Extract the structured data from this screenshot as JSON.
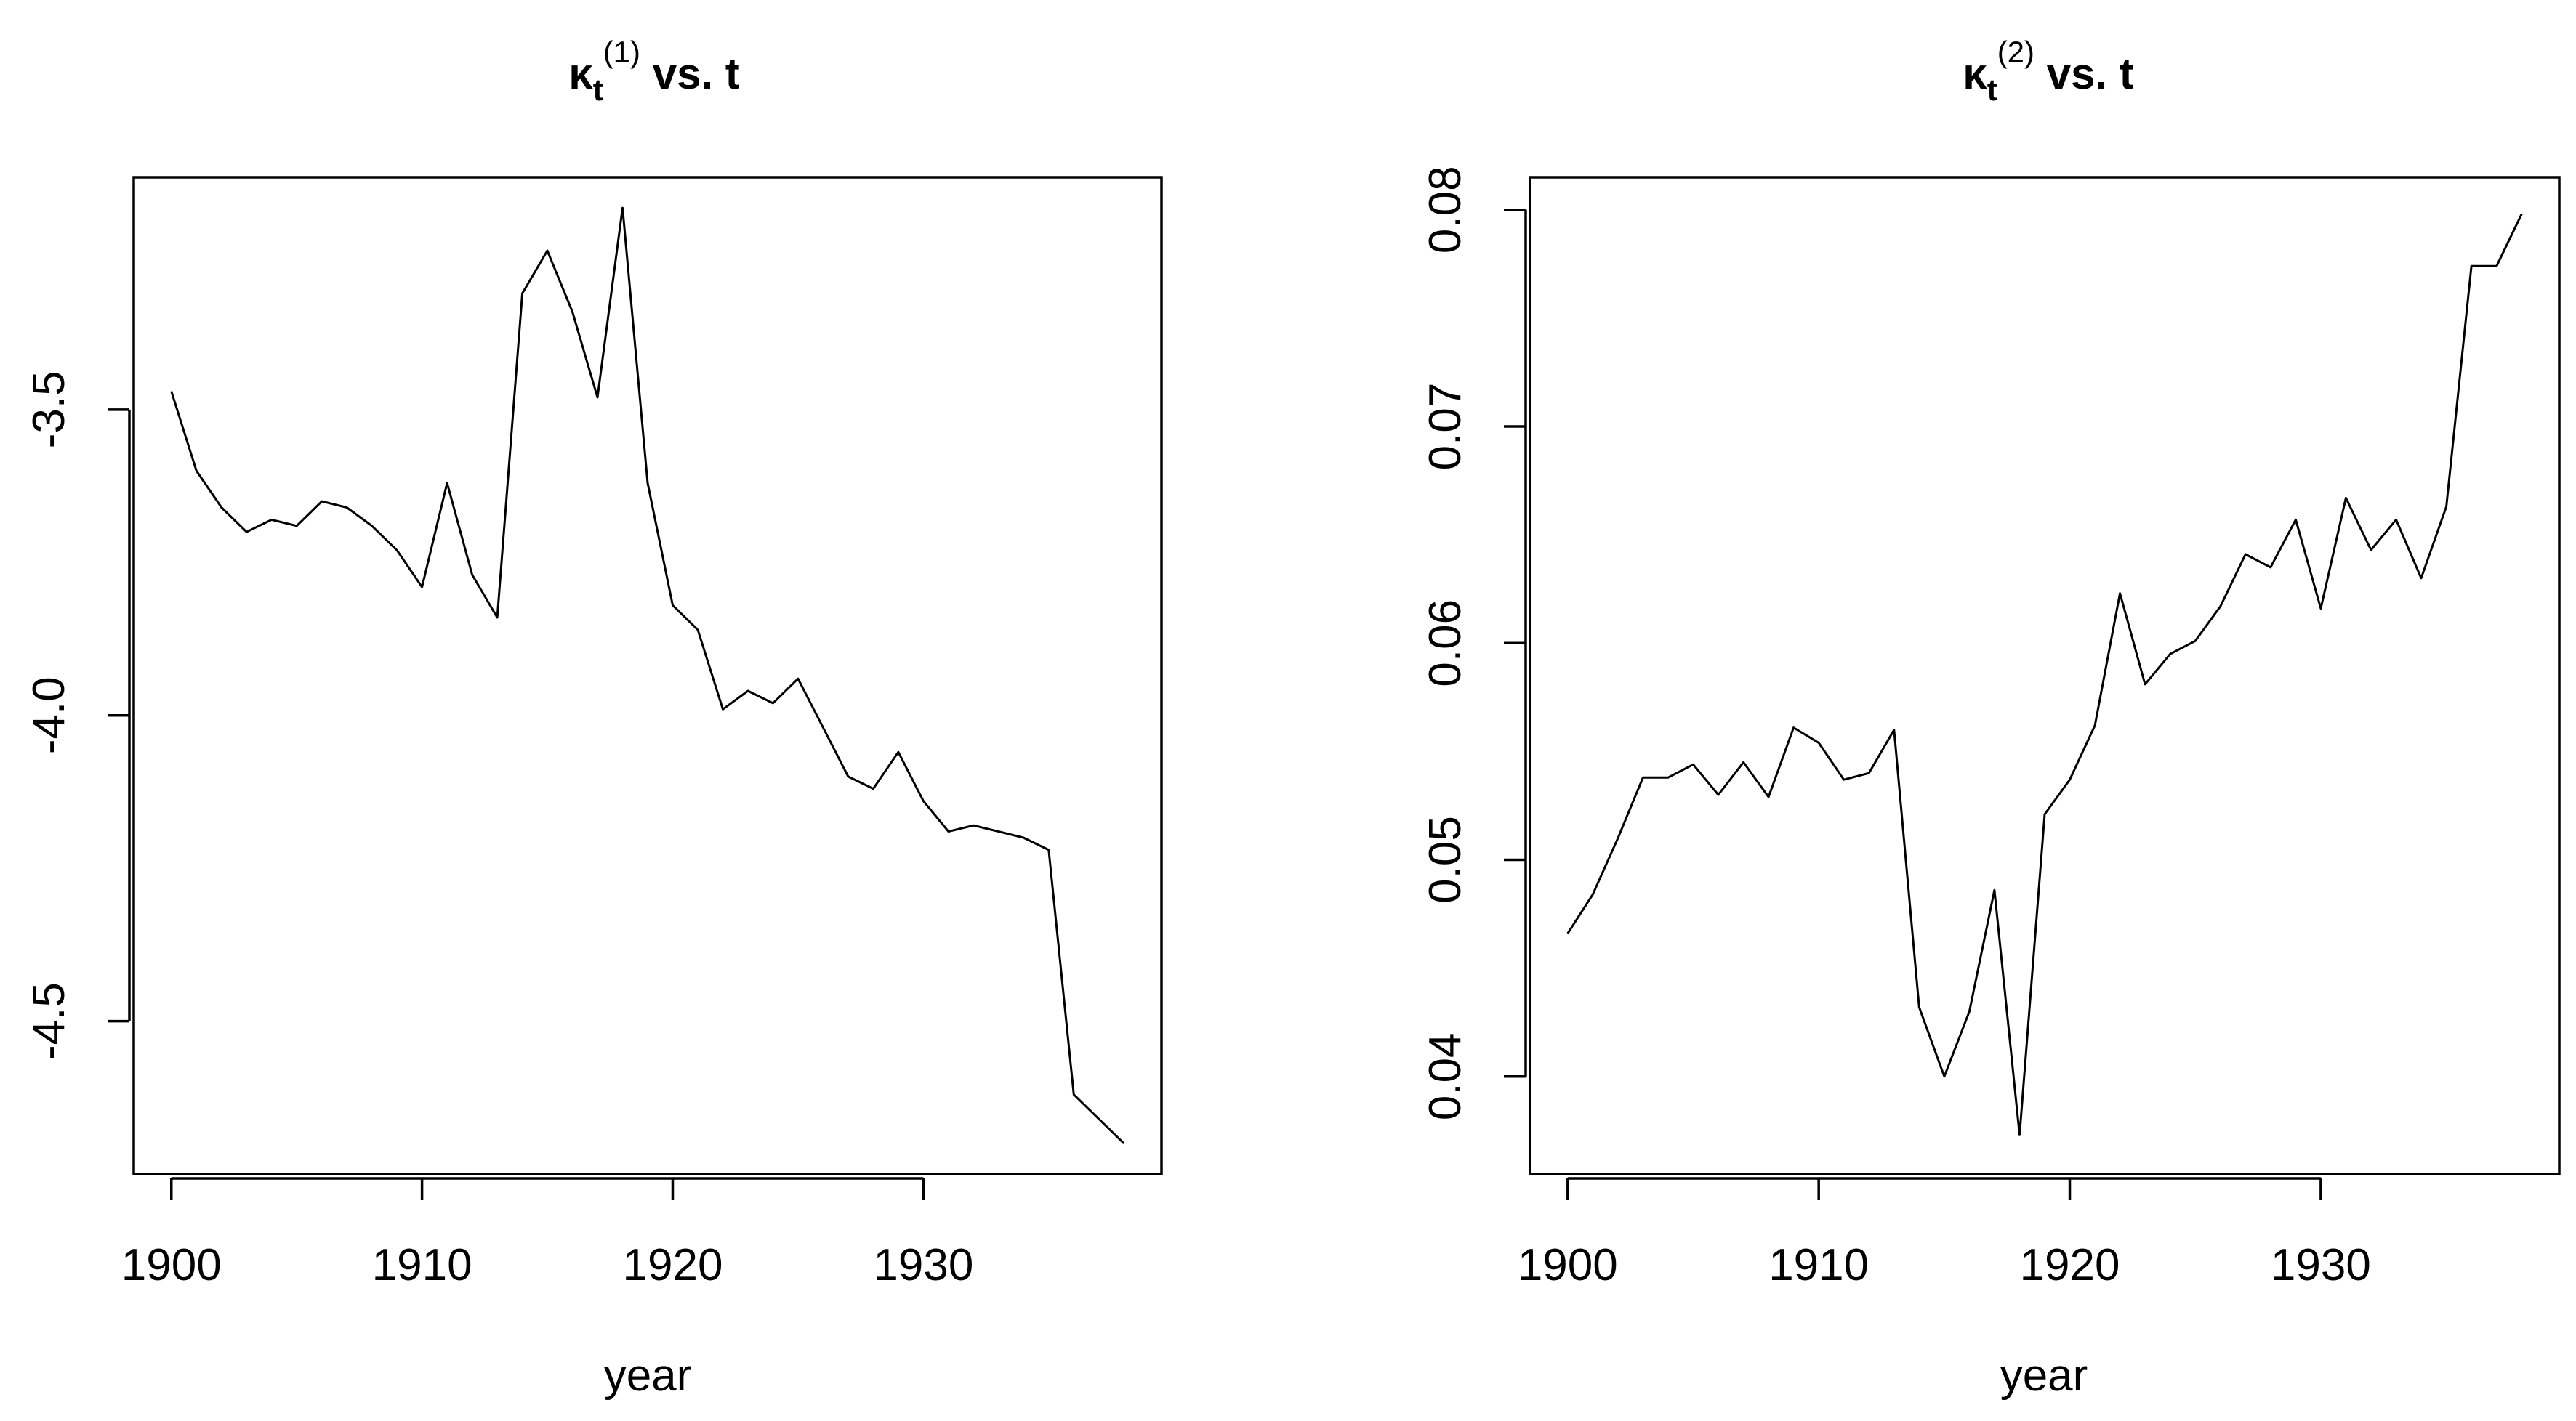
{
  "chart_data": [
    {
      "type": "line",
      "title": {
        "main": "κ",
        "sub": "t",
        "sup": "(1)",
        "rest": " vs. t"
      },
      "xlabel": "year",
      "ylabel": "",
      "xlim": [
        1898.5,
        1939.5
      ],
      "ylim": [
        -4.75,
        -3.12
      ],
      "xticks": [
        1900,
        1910,
        1920,
        1930
      ],
      "xtick_labels": [
        "1900",
        "1910",
        "1920",
        "1930"
      ],
      "yticks": [
        -3.5,
        -4.0,
        -4.5
      ],
      "ytick_labels": [
        "-3.5",
        "-4.0",
        "-4.5"
      ],
      "grid": false,
      "legend": "none",
      "x": [
        1900,
        1901,
        1902,
        1903,
        1904,
        1905,
        1906,
        1907,
        1908,
        1909,
        1910,
        1911,
        1912,
        1913,
        1914,
        1915,
        1916,
        1917,
        1918,
        1919,
        1920,
        1921,
        1922,
        1923,
        1924,
        1925,
        1926,
        1927,
        1928,
        1929,
        1930,
        1931,
        1932,
        1933,
        1934,
        1935,
        1936,
        1937,
        1938
      ],
      "y": [
        -3.47,
        -3.6,
        -3.66,
        -3.7,
        -3.68,
        -3.69,
        -3.65,
        -3.66,
        -3.69,
        -3.73,
        -3.79,
        -3.62,
        -3.77,
        -3.84,
        -3.31,
        -3.24,
        -3.34,
        -3.48,
        -3.17,
        -3.62,
        -3.82,
        -3.86,
        -3.99,
        -3.96,
        -3.98,
        -3.94,
        -4.02,
        -4.1,
        -4.12,
        -4.06,
        -4.14,
        -4.19,
        -4.18,
        -4.19,
        -4.2,
        -4.22,
        -4.62,
        -4.66,
        -4.7
      ]
    },
    {
      "type": "line",
      "title": {
        "main": "κ",
        "sub": "t",
        "sup": "(2)",
        "rest": " vs. t"
      },
      "xlabel": "year",
      "ylabel": "",
      "xlim": [
        1898.5,
        1939.5
      ],
      "ylim": [
        0.0355,
        0.0815
      ],
      "xticks": [
        1900,
        1910,
        1920,
        1930
      ],
      "xtick_labels": [
        "1900",
        "1910",
        "1920",
        "1930"
      ],
      "yticks": [
        0.04,
        0.05,
        0.06,
        0.07,
        0.08
      ],
      "ytick_labels": [
        "0.04",
        "0.05",
        "0.06",
        "0.07",
        "0.08"
      ],
      "grid": false,
      "legend": "none",
      "x": [
        1900,
        1901,
        1902,
        1903,
        1904,
        1905,
        1906,
        1907,
        1908,
        1909,
        1910,
        1911,
        1912,
        1913,
        1914,
        1915,
        1916,
        1917,
        1918,
        1919,
        1920,
        1921,
        1922,
        1923,
        1924,
        1925,
        1926,
        1927,
        1928,
        1929,
        1930,
        1931,
        1932,
        1933,
        1934,
        1935,
        1936,
        1937,
        1938
      ],
      "y": [
        0.0466,
        0.0484,
        0.051,
        0.0538,
        0.0538,
        0.0544,
        0.053,
        0.0545,
        0.0529,
        0.0561,
        0.0554,
        0.0537,
        0.054,
        0.056,
        0.0432,
        0.04,
        0.043,
        0.0486,
        0.0373,
        0.0521,
        0.0537,
        0.0562,
        0.0623,
        0.0581,
        0.0595,
        0.0601,
        0.0617,
        0.0641,
        0.0635,
        0.0657,
        0.0616,
        0.0667,
        0.0643,
        0.0657,
        0.063,
        0.0663,
        0.0774,
        0.0774,
        0.0798
      ]
    }
  ]
}
